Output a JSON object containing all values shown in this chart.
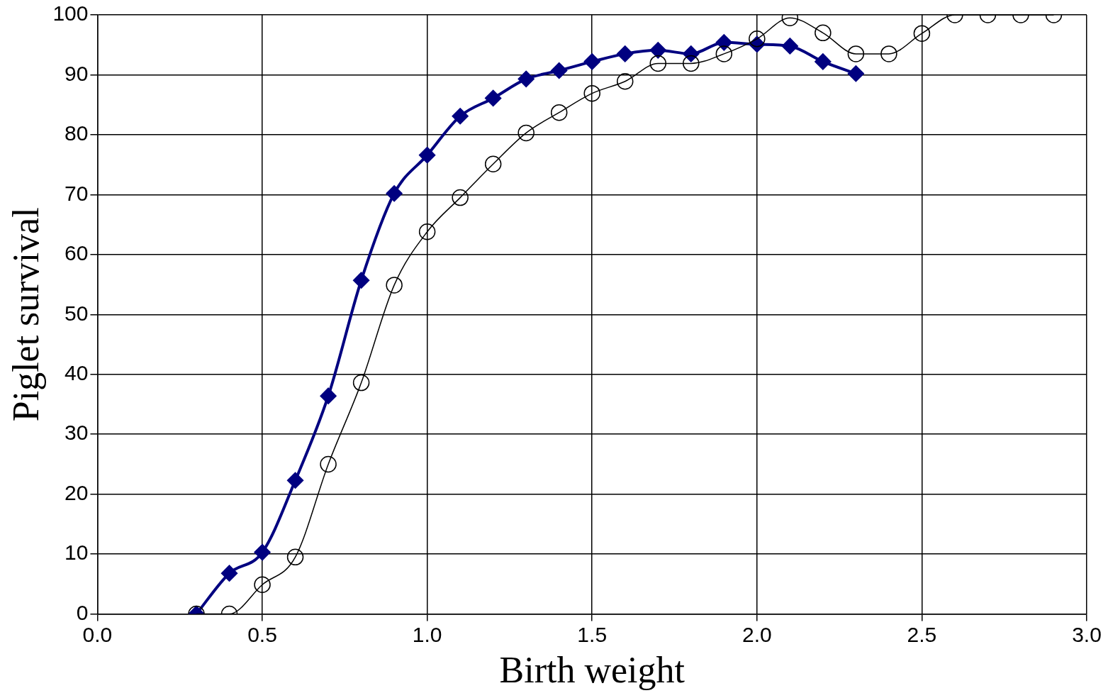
{
  "chart_data": {
    "type": "line",
    "xlabel": "Birth weight",
    "ylabel": "Piglet survival",
    "xlim": [
      0,
      3
    ],
    "ylim": [
      0,
      100
    ],
    "xticks": [
      {
        "value": 0,
        "label": "0.0"
      },
      {
        "value": 0.5,
        "label": "0.5"
      },
      {
        "value": 1,
        "label": "1.0"
      },
      {
        "value": 1.5,
        "label": "1.5"
      },
      {
        "value": 2,
        "label": "2.0"
      },
      {
        "value": 2.5,
        "label": "2.5"
      },
      {
        "value": 3,
        "label": "3.0"
      }
    ],
    "yticks": [
      0,
      10,
      20,
      30,
      40,
      50,
      60,
      70,
      80,
      90,
      100
    ],
    "grid": true,
    "legend": false,
    "series": [
      {
        "color": "#000080",
        "marker": "diamond",
        "x": [
          0.3,
          0.4,
          0.5,
          0.6,
          0.7,
          0.8,
          0.9,
          1.0,
          1.1,
          1.2,
          1.3,
          1.4,
          1.5,
          1.6,
          1.7,
          1.8,
          1.9,
          2.0,
          2.1,
          2.2,
          2.3
        ],
        "values": [
          0,
          6.8,
          10.3,
          22.3,
          36.4,
          55.7,
          70.2,
          76.6,
          83.1,
          86.1,
          89.3,
          90.7,
          92.2,
          93.5,
          94.1,
          93.5,
          95.4,
          95.1,
          94.8,
          92.2,
          90.2
        ]
      },
      {
        "color": "#000000",
        "marker": "circle",
        "x": [
          0.3,
          0.4,
          0.5,
          0.6,
          0.7,
          0.8,
          0.9,
          1.0,
          1.1,
          1.2,
          1.3,
          1.4,
          1.5,
          1.6,
          1.7,
          1.8,
          1.9,
          2.0,
          2.1,
          2.2,
          2.3,
          2.4,
          2.5,
          2.6,
          2.7,
          2.8,
          2.9
        ],
        "values": [
          0,
          0,
          4.9,
          9.5,
          25.0,
          38.6,
          54.9,
          63.8,
          69.5,
          75.1,
          80.3,
          83.7,
          86.9,
          88.9,
          91.9,
          91.9,
          93.5,
          96.0,
          99.5,
          97.0,
          93.5,
          93.5,
          96.9,
          100,
          100,
          100,
          100
        ]
      }
    ]
  }
}
